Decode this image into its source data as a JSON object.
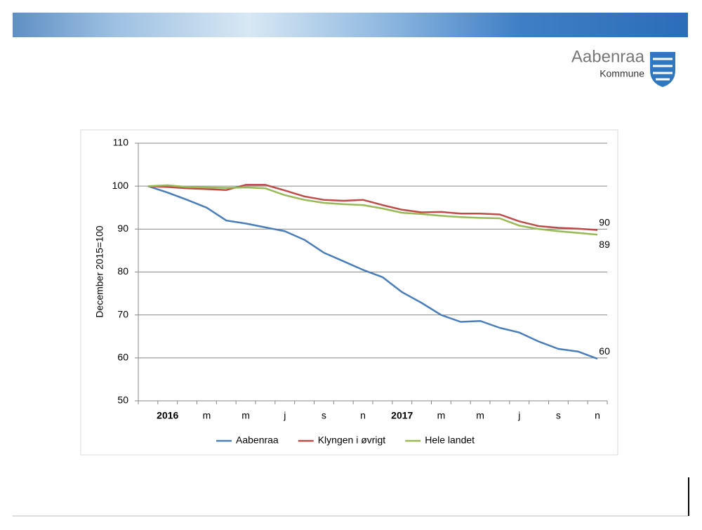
{
  "header": {
    "logo_name": "Aabenraa",
    "logo_sub": "Kommune"
  },
  "chart_data": {
    "type": "line",
    "ylabel": "December 2015=100",
    "categories": [
      null,
      "2016",
      null,
      "m",
      null,
      "m",
      null,
      "j",
      null,
      "s",
      null,
      "n",
      null,
      "2017",
      null,
      "m",
      null,
      "m",
      null,
      "j",
      null,
      "s",
      null,
      "n"
    ],
    "series": [
      {
        "name": "Aabenraa",
        "color": "#4a7ebb",
        "values": [
          100,
          98.5,
          96.8,
          95,
          92,
          91.3,
          90.4,
          89.5,
          87.5,
          84.5,
          82.5,
          80.5,
          78.8,
          75.3,
          72.8,
          70,
          68.4,
          68.6,
          67,
          65.9,
          63.8,
          62.1,
          61.5,
          59.8
        ],
        "value_labels": [
          null,
          null,
          null,
          null,
          null,
          null,
          null,
          null,
          null,
          null,
          null,
          null,
          null,
          null,
          null,
          null,
          null,
          null,
          null,
          null,
          null,
          null,
          null,
          "60"
        ]
      },
      {
        "name": "Klyngen i øvrigt",
        "color": "#be4b48",
        "values": [
          100,
          99.8,
          99.5,
          99.3,
          99.1,
          100.3,
          100.3,
          99,
          97.6,
          96.8,
          96.6,
          96.8,
          95.6,
          94.5,
          93.9,
          94,
          93.6,
          93.6,
          93.4,
          91.8,
          90.7,
          90.3,
          90.1,
          89.8
        ],
        "value_labels": [
          null,
          null,
          null,
          null,
          null,
          null,
          null,
          null,
          null,
          null,
          null,
          null,
          null,
          null,
          null,
          null,
          null,
          null,
          null,
          null,
          null,
          null,
          null,
          "90"
        ]
      },
      {
        "name": "Hele landet",
        "color": "#98b954",
        "values": [
          100,
          100.2,
          99.8,
          99.7,
          99.6,
          99.7,
          99.5,
          97.9,
          96.8,
          96.1,
          95.8,
          95.6,
          94.8,
          93.8,
          93.5,
          93.1,
          92.8,
          92.6,
          92.5,
          90.8,
          90,
          89.5,
          89.1,
          88.7
        ],
        "value_labels": [
          null,
          null,
          null,
          null,
          null,
          null,
          null,
          null,
          null,
          null,
          null,
          null,
          null,
          null,
          null,
          null,
          null,
          null,
          null,
          null,
          null,
          null,
          null,
          "89"
        ]
      }
    ],
    "ylim": [
      50,
      110
    ],
    "yticks": [
      50,
      60,
      70,
      80,
      90,
      100,
      110
    ],
    "grid": true,
    "legend": "bottom"
  }
}
